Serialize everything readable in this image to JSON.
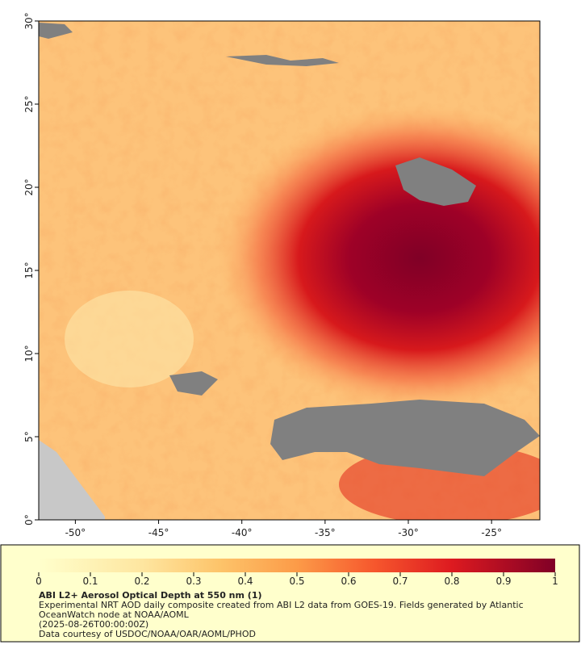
{
  "map": {
    "title": "ABI L2+ Aerosol Optical Depth at 550 nm (1)",
    "notes": [
      "Experimental NRT AOD daily composite created from ABI L2 data from GOES-19. Fields generated by Atlantic",
      "OceanWatch node at NOAA/AOML",
      "(2025-08-26T00:00:00Z)",
      "Data courtesy of USDOC/NOAA/OAR/AOML/PHOD"
    ],
    "xlim": [
      -52.2,
      -22.1
    ],
    "ylim": [
      0,
      30
    ],
    "xticks": [
      {
        "value": -50,
        "label": "-50°"
      },
      {
        "value": -45,
        "label": "-45°"
      },
      {
        "value": -40,
        "label": "-40°"
      },
      {
        "value": -35,
        "label": "-35°"
      },
      {
        "value": -30,
        "label": "-30°"
      },
      {
        "value": -25,
        "label": "-25°"
      }
    ],
    "yticks": [
      {
        "value": 0,
        "label": "0°"
      },
      {
        "value": 5,
        "label": "5°"
      },
      {
        "value": 10,
        "label": "10°"
      },
      {
        "value": 15,
        "label": "15°"
      },
      {
        "value": 20,
        "label": "20°"
      },
      {
        "value": 25,
        "label": "25°"
      },
      {
        "value": 30,
        "label": "30°"
      }
    ],
    "colorbar": {
      "lim": [
        0,
        1
      ],
      "ticks": [
        0,
        0.1,
        0.2,
        0.3,
        0.4,
        0.5,
        0.6,
        0.7,
        0.8,
        0.9,
        1
      ]
    }
  }
}
